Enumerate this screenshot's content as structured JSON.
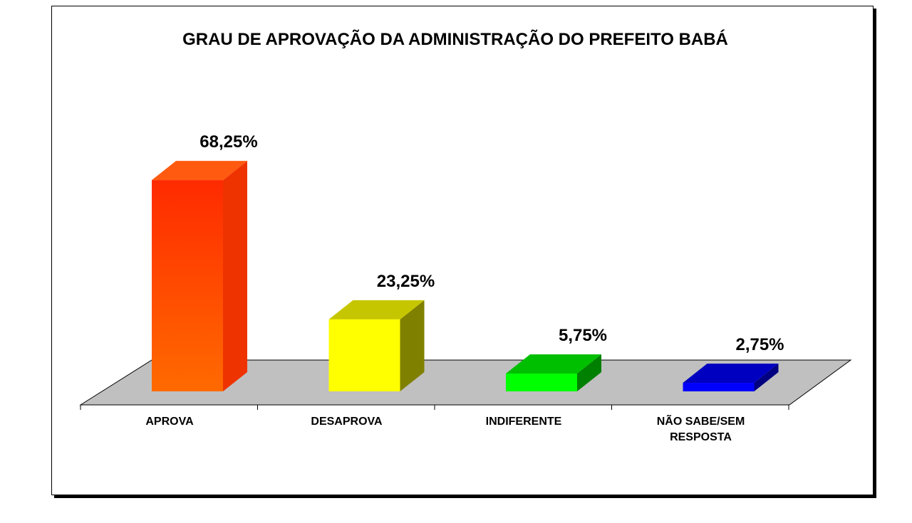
{
  "chart_data": {
    "type": "bar",
    "title": "GRAU DE APROVAÇÃO DA ADMINISTRAÇÃO DO PREFEITO BABÁ",
    "categories": [
      "APROVA",
      "DESAPROVA",
      "INDIFERENTE",
      "NÃO SABE/SEM RESPOSTA"
    ],
    "category_lines": [
      [
        "APROVA"
      ],
      [
        "DESAPROVA"
      ],
      [
        "INDIFERENTE"
      ],
      [
        "NÃO SABE/SEM",
        "RESPOSTA"
      ]
    ],
    "values": [
      68.25,
      23.25,
      5.75,
      2.75
    ],
    "data_labels": [
      "68,25%",
      "23,25%",
      "5,75%",
      "2,75%"
    ],
    "unit": "%",
    "xlabel": "",
    "ylabel": "",
    "grid": false,
    "legend": "none",
    "three_d": true,
    "colors": {
      "APROVA": {
        "front_top": "#ff2a00",
        "front_bottom": "#ff6a00",
        "top": "#ff5a10",
        "side": "#ee3300"
      },
      "DESAPROVA": {
        "front_top": "#ffff00",
        "front_bottom": "#ffff00",
        "top": "#c6c600",
        "side": "#808000"
      },
      "INDIFERENTE": {
        "front_top": "#00ff00",
        "front_bottom": "#00ff00",
        "top": "#00bf00",
        "side": "#008000"
      },
      "NÃO SABE/SEM RESPOSTA": {
        "front_top": "#0000ff",
        "front_bottom": "#0000ff",
        "top": "#0000c0",
        "side": "#000080"
      }
    },
    "floor_color": "#c0c0c0"
  }
}
